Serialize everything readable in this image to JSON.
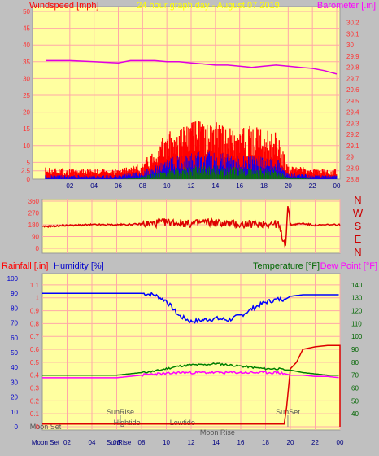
{
  "colors": {
    "frame": "#c0c0c0",
    "plot_bg": "#ffffa0",
    "grid": "#ffa8a8",
    "wind_gust": "#ff0000",
    "wind_avg": "#0000ff",
    "wind_low": "#008000",
    "barometer": "#e000e0",
    "direction": "#dd0000",
    "humidity": "#0000ff",
    "temperature": "#008000",
    "dewpoint": "#ff00ff",
    "rainfall": "#dd0000",
    "tick_red": "#ff3333",
    "tick_blue": "#0000cc",
    "tick_green": "#006600",
    "title_yellow": "#ffff00"
  },
  "header": {
    "title": "24 hour graph day - August 07 2019",
    "left_label": "Windspeed [mph]",
    "right_label": "Barometer [.in]"
  },
  "x_labels": [
    "02",
    "04",
    "06",
    "08",
    "10",
    "12",
    "14",
    "16",
    "18",
    "20",
    "22",
    "00"
  ],
  "chart_data": [
    {
      "type": "line",
      "title": "24 hour graph day - August 07 2019",
      "ylabel": "Windspeed [mph]",
      "y2label": "Barometer [.in]",
      "ylim": [
        0,
        50
      ],
      "y2lim": [
        28.8,
        30.3
      ],
      "yticks": [
        "0",
        "2.5",
        "5",
        "10",
        "15",
        "20",
        "25",
        "30",
        "35",
        "40",
        "45",
        "50"
      ],
      "y2ticks": [
        "28.8",
        "28.9",
        "29",
        "29.1",
        "29.2",
        "29.3",
        "29.4",
        "29.5",
        "29.6",
        "29.7",
        "29.8",
        "29.9",
        "30",
        "30.1",
        "30.2"
      ],
      "x_hours": [
        0,
        2,
        4,
        6,
        7,
        8,
        9,
        10,
        11,
        12,
        13,
        14,
        15,
        16,
        17,
        18,
        19,
        20,
        21,
        22,
        23,
        24
      ],
      "series": [
        {
          "name": "Windspeed",
          "role": "gust",
          "values": [
            3,
            2.5,
            2.5,
            2.5,
            3,
            4,
            8,
            11,
            13,
            14,
            14,
            14,
            13,
            12,
            13,
            12,
            12,
            3,
            3,
            2.5,
            2.5,
            2.5
          ]
        },
        {
          "name": "Windspeed",
          "role": "average",
          "values": [
            1,
            1,
            1,
            1,
            1.5,
            2,
            3.5,
            5,
            6,
            6.5,
            7,
            7,
            6.5,
            6,
            6,
            6,
            6,
            1.5,
            1.5,
            1,
            1,
            1
          ]
        },
        {
          "name": "Windspeed",
          "role": "low",
          "values": [
            0,
            0,
            0,
            0,
            0.3,
            0.8,
            1.5,
            2.5,
            3,
            3.2,
            3.5,
            3.5,
            3.2,
            3,
            3,
            3,
            3,
            0.5,
            0.5,
            0,
            0,
            0
          ]
        },
        {
          "name": "Barometer",
          "values": [
            29.86,
            29.86,
            29.85,
            29.84,
            29.86,
            29.86,
            29.86,
            29.85,
            29.85,
            29.84,
            29.83,
            29.82,
            29.82,
            29.81,
            29.8,
            29.81,
            29.82,
            29.81,
            29.8,
            29.79,
            29.77,
            29.74
          ]
        }
      ]
    },
    {
      "type": "line",
      "ylabel": "Wind direction",
      "ylim": [
        0,
        360
      ],
      "yticks": [
        "0",
        "90",
        "180",
        "270",
        "360"
      ],
      "compass": [
        "N",
        "W",
        "S",
        "E",
        "N"
      ],
      "x_hours": [
        0,
        2,
        4,
        6,
        8,
        9,
        10,
        11,
        12,
        13,
        14,
        15,
        16,
        17,
        18,
        19,
        19.6,
        19.8,
        20,
        21,
        22,
        23,
        24
      ],
      "values": [
        165,
        175,
        180,
        180,
        185,
        190,
        200,
        195,
        185,
        200,
        195,
        190,
        180,
        185,
        190,
        185,
        20,
        320,
        180,
        190,
        175,
        180,
        180
      ]
    },
    {
      "type": "line",
      "header_labels": [
        "Rainfall [.in]",
        "Humidity [%]",
        "Temperature [°F]",
        "Dew Point [°F]"
      ],
      "y_humidity_lim": [
        0,
        100
      ],
      "y_humidity_ticks": [
        "0",
        "10",
        "20",
        "30",
        "40",
        "50",
        "60",
        "70",
        "80",
        "90",
        "100"
      ],
      "y_rain_lim": [
        0,
        1.15
      ],
      "y_rain_ticks": [
        "0",
        "0.1",
        "0.2",
        "0.3",
        "0.4",
        "0.5",
        "0.6",
        "0.7",
        "0.8",
        "0.9",
        "1",
        "1.1"
      ],
      "y_temp_lim": [
        30,
        145
      ],
      "y_temp_ticks": [
        "40",
        "50",
        "60",
        "70",
        "80",
        "90",
        "100",
        "110",
        "120",
        "130",
        "140"
      ],
      "x_hours": [
        0,
        2,
        4,
        6,
        7,
        8,
        9,
        10,
        11,
        12,
        13,
        14,
        15,
        16,
        17,
        18,
        19,
        19.6,
        20,
        21,
        22,
        23,
        24
      ],
      "series": [
        {
          "name": "Humidity",
          "values": [
            90,
            90,
            90,
            90,
            90,
            90,
            89,
            85,
            75,
            71,
            72,
            73,
            72,
            75,
            80,
            84,
            86,
            86,
            88,
            89,
            89,
            89,
            89
          ]
        },
        {
          "name": "Temperature",
          "values": [
            70,
            70,
            70,
            70,
            71,
            72,
            73,
            75,
            77,
            78,
            78,
            79,
            78,
            77,
            76,
            75,
            75,
            74,
            74,
            72,
            71,
            70,
            70
          ]
        },
        {
          "name": "Dew Point",
          "values": [
            68,
            68,
            68,
            68,
            69,
            70,
            71,
            71,
            72,
            72,
            72,
            72,
            72,
            72,
            72,
            72,
            72,
            71,
            70,
            70,
            69,
            69,
            68
          ]
        },
        {
          "name": "Rainfall",
          "x_hours": [
            0,
            19.5,
            19.7,
            20,
            20.5,
            21,
            22,
            23,
            24,
            24
          ],
          "values": [
            0.02,
            0.02,
            0.15,
            0.45,
            0.5,
            0.6,
            0.62,
            0.63,
            0.63,
            0
          ]
        }
      ],
      "events": {
        "sunrise": {
          "label": "SunRise",
          "hour": 6.3
        },
        "sunset": {
          "label": "SunSet",
          "hour": 19.8
        },
        "hightide": {
          "label": "Hightide",
          "hour": 6.7
        },
        "lowtide": {
          "label": "Lowtide",
          "hour": 11.3
        },
        "moonset": {
          "label": "Moon Set",
          "hour": 0
        },
        "moonrise": {
          "label": "Moon Rise",
          "hour": 11.5
        },
        "sunrise_small": {
          "label": "SunRise"
        }
      }
    }
  ]
}
